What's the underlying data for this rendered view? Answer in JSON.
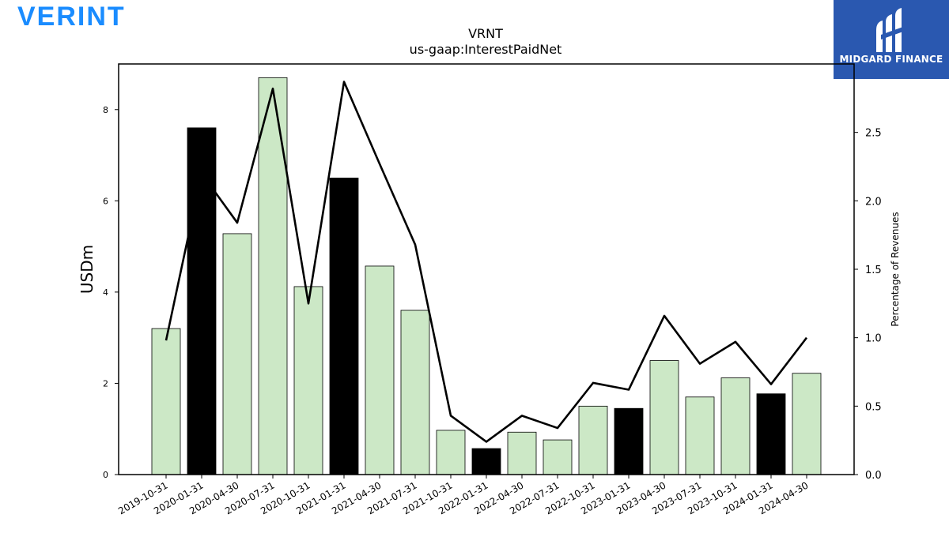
{
  "brand": {
    "logo_text": "VERINT"
  },
  "badge": {
    "text": "MIDGARD FINANCE",
    "icon": "midgard-finance-logo-icon"
  },
  "colors": {
    "bar_normal": "#cce8c6",
    "bar_highlight": "#000000",
    "line": "#000000"
  },
  "chart_data": {
    "type": "bar",
    "title": "VRNT",
    "subtitle": "us-gaap:InterestPaidNet",
    "ylabel": "USDm",
    "y2label": "Percentage of Revenues",
    "ylim": [
      0,
      9
    ],
    "y2lim": [
      0,
      3.0
    ],
    "yticks": [
      0,
      2,
      4,
      6,
      8
    ],
    "y2ticks": [
      "0.0",
      "0.5",
      "1.0",
      "1.5",
      "2.0",
      "2.5"
    ],
    "categories": [
      "2019-10-31",
      "2020-01-31",
      "2020-04-30",
      "2020-07-31",
      "2020-10-31",
      "2021-01-31",
      "2021-04-30",
      "2021-07-31",
      "2021-10-31",
      "2022-01-31",
      "2022-04-30",
      "2022-07-31",
      "2022-10-31",
      "2023-01-31",
      "2023-04-30",
      "2023-07-31",
      "2023-10-31",
      "2024-01-31",
      "2024-04-30"
    ],
    "series": [
      {
        "type": "bar",
        "axis": "left",
        "values": [
          3.2,
          7.6,
          5.28,
          8.7,
          4.12,
          6.5,
          4.57,
          3.6,
          0.97,
          0.57,
          0.93,
          0.76,
          1.5,
          1.45,
          2.5,
          1.7,
          2.12,
          1.77,
          2.22
        ],
        "highlight": [
          false,
          true,
          false,
          false,
          false,
          true,
          false,
          false,
          false,
          true,
          false,
          false,
          false,
          true,
          false,
          false,
          false,
          true,
          false
        ]
      },
      {
        "type": "line",
        "axis": "right",
        "values": [
          0.98,
          2.2,
          1.84,
          2.82,
          1.25,
          2.87,
          2.27,
          1.68,
          0.43,
          0.24,
          0.43,
          0.34,
          0.67,
          0.62,
          1.16,
          0.81,
          0.97,
          0.66,
          1.0
        ]
      }
    ],
    "grid": false,
    "legend": "none"
  }
}
